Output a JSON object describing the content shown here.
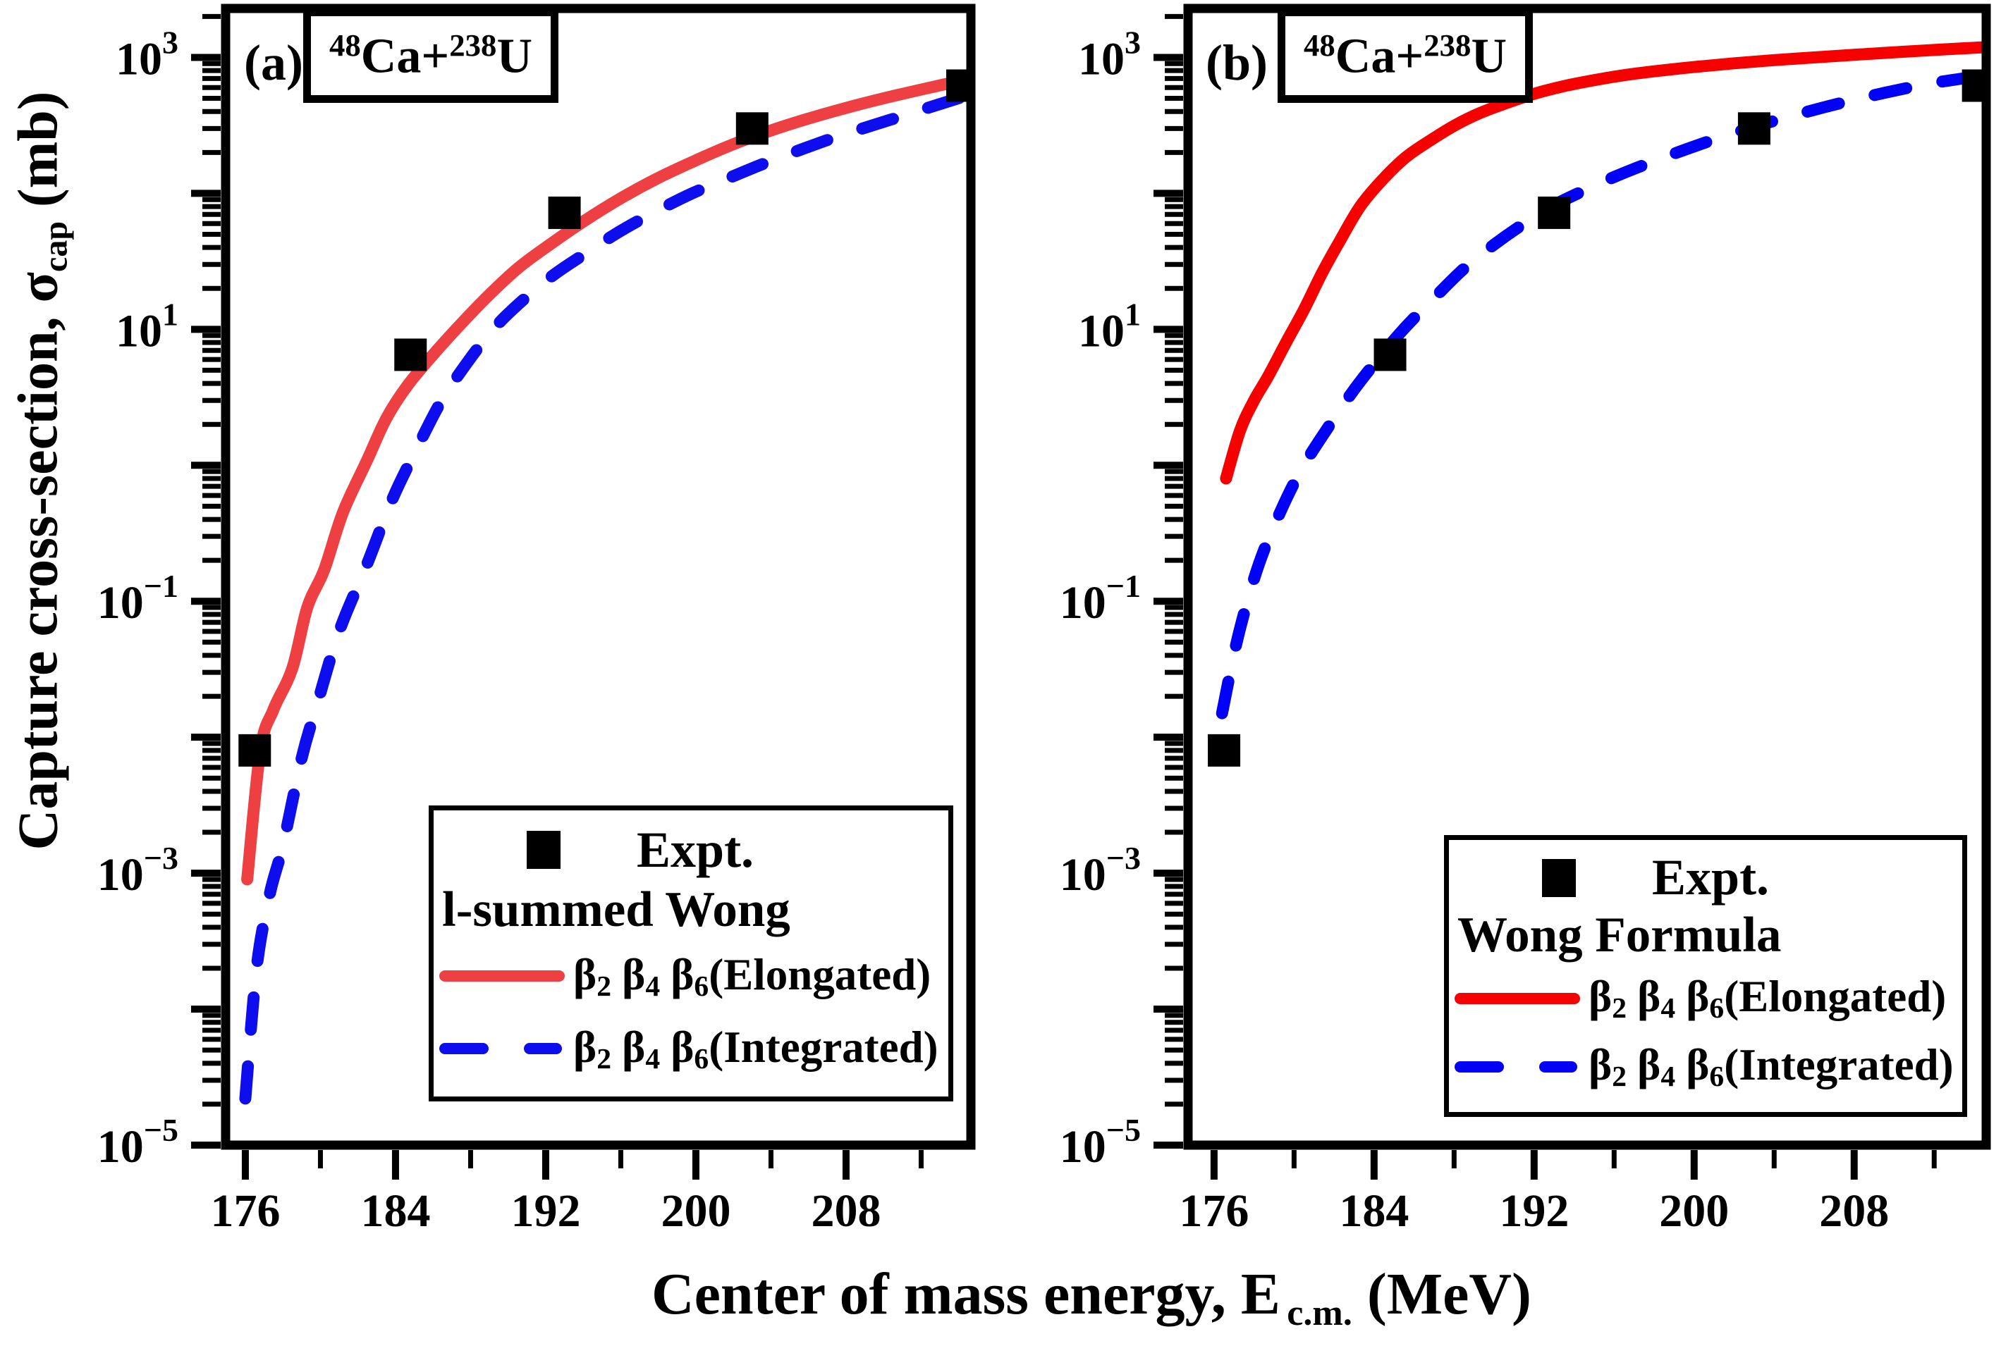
{
  "axis_labels": {
    "x": {
      "main": "Center of mass energy, E",
      "sub": "c.m.",
      "unit": " (MeV)"
    },
    "y": {
      "main": "Capture cross-section, ",
      "sigma": "σ",
      "sub": "cap",
      "unit": " (mb)"
    }
  },
  "panels": [
    {
      "tag": "(a)",
      "title": {
        "sup1": "48",
        "el1": "Ca",
        "plus": "+",
        "sup2": "238",
        "el2": "U"
      },
      "legend": {
        "expt_label": "Expt.",
        "model_label": "l-summed Wong",
        "entries": [
          {
            "beta": "β",
            "sub1": "2",
            "sub2": "4",
            "sub3": "6",
            "suffix": "(Elongated)",
            "color": "#ee4043",
            "dashed": false
          },
          {
            "beta": "β",
            "sub1": "2",
            "sub2": "4",
            "sub3": "6",
            "suffix": "(Integrated)",
            "color": "#0d0dee",
            "dashed": true
          }
        ]
      }
    },
    {
      "tag": "(b)",
      "title": {
        "sup1": "48",
        "el1": "Ca",
        "plus": "+",
        "sup2": "238",
        "el2": "U"
      },
      "legend": {
        "expt_label": "Expt.",
        "model_label": "Wong Formula",
        "entries": [
          {
            "beta": "β",
            "sub1": "2",
            "sub2": "4",
            "sub3": "6",
            "suffix": "(Elongated)",
            "color": "#f60000",
            "dashed": false
          },
          {
            "beta": "β",
            "sub1": "2",
            "sub2": "4",
            "sub3": "6",
            "suffix": "(Integrated)",
            "color": "#0202f6",
            "dashed": true
          }
        ]
      }
    }
  ],
  "chart_data": [
    {
      "type": "line",
      "panel": "(a)",
      "title": "48Ca+238U",
      "model": "l-summed Wong",
      "xlabel": "Center of mass energy, E c.m. (MeV)",
      "ylabel": "Capture cross-section, σ_cap (mb)",
      "xlim": [
        174.95,
        214.65
      ],
      "ylim_exp": [
        -5,
        3.36
      ],
      "x_ticks_major": [
        176,
        184,
        192,
        200,
        208
      ],
      "x_ticks_minor": [
        180,
        188,
        196,
        204,
        212
      ],
      "y_ticks": {
        "base": "10",
        "labeled_exps": [
          3,
          1,
          -1,
          -3,
          -5
        ]
      },
      "grid": false,
      "series": [
        {
          "name": "Expt.",
          "kind": "scatter",
          "marker": "square",
          "color": "#000000",
          "points": [
            [
              176.5,
              0.008
            ],
            [
              184.8,
              6.5
            ],
            [
              193.0,
              72
            ],
            [
              203.0,
              300
            ],
            [
              214.2,
              620
            ]
          ]
        },
        {
          "name": "β2 β4 β6 (Elongated)",
          "kind": "line",
          "color": "#ee4043",
          "dashed": false,
          "points": [
            [
              176.1,
              0.0009
            ],
            [
              176.8,
              0.008
            ],
            [
              177.5,
              0.016
            ],
            [
              178.5,
              0.032
            ],
            [
              179.3,
              0.09
            ],
            [
              180.2,
              0.17
            ],
            [
              181.2,
              0.45
            ],
            [
              182.5,
              1.1
            ],
            [
              183.5,
              2.2
            ],
            [
              184.6,
              3.8
            ],
            [
              186.0,
              6.5
            ],
            [
              187.5,
              11
            ],
            [
              189.0,
              18
            ],
            [
              190.5,
              28
            ],
            [
              192.0,
              40
            ],
            [
              194.0,
              62
            ],
            [
              196.0,
              92
            ],
            [
              198.0,
              130
            ],
            [
              200.0,
              175
            ],
            [
              202.0,
              230
            ],
            [
              204.0,
              290
            ],
            [
              206.0,
              355
            ],
            [
              208.0,
              425
            ],
            [
              210.0,
              500
            ],
            [
              212.0,
              580
            ],
            [
              214.65,
              700
            ]
          ]
        },
        {
          "name": "β2 β4 β6 (Integrated)",
          "kind": "line",
          "color": "#0d0dee",
          "dashed": true,
          "points": [
            [
              176.0,
              2.2e-05
            ],
            [
              176.6,
              0.0002
            ],
            [
              177.3,
              0.0007
            ],
            [
              178.0,
              0.0016
            ],
            [
              179.0,
              0.007
            ],
            [
              179.8,
              0.017
            ],
            [
              181.0,
              0.06
            ],
            [
              182.5,
              0.19
            ],
            [
              183.8,
              0.55
            ],
            [
              185.1,
              1.3
            ],
            [
              186.4,
              2.9
            ],
            [
              187.7,
              5.4
            ],
            [
              189.2,
              10
            ],
            [
              190.7,
              16
            ],
            [
              192.4,
              25
            ],
            [
              194.1,
              36
            ],
            [
              196.0,
              53
            ],
            [
              197.9,
              74
            ],
            [
              199.8,
              100
            ],
            [
              201.6,
              127
            ],
            [
              203.5,
              163
            ],
            [
              205.4,
              205
            ],
            [
              207.3,
              255
            ],
            [
              209.2,
              310
            ],
            [
              210.7,
              360
            ],
            [
              212.2,
              419
            ],
            [
              214.65,
              535
            ]
          ]
        }
      ]
    },
    {
      "type": "line",
      "panel": "(b)",
      "title": "48Ca+238U",
      "model": "Wong Formula",
      "xlabel": "Center of mass energy, E c.m. (MeV)",
      "ylabel": "Capture cross-section, σ_cap (mb)",
      "xlim": [
        174.7,
        214.6
      ],
      "ylim_exp": [
        -5,
        3.36
      ],
      "x_ticks_major": [
        176,
        184,
        192,
        200,
        208
      ],
      "x_ticks_minor": [
        180,
        188,
        196,
        204,
        212
      ],
      "y_ticks": {
        "base": "10",
        "labeled_exps": [
          3,
          1,
          -1,
          -3,
          -5
        ]
      },
      "grid": false,
      "series": [
        {
          "name": "Expt.",
          "kind": "scatter",
          "marker": "square",
          "color": "#000000",
          "points": [
            [
              176.5,
              0.008
            ],
            [
              184.8,
              6.5
            ],
            [
              193.0,
              72
            ],
            [
              203.0,
              300
            ],
            [
              214.2,
              620
            ]
          ]
        },
        {
          "name": "β2 β4 β6 (Elongated)",
          "kind": "line",
          "color": "#f60000",
          "dashed": false,
          "points": [
            [
              176.6,
              0.8
            ],
            [
              177.3,
              1.8
            ],
            [
              178.0,
              3.0
            ],
            [
              178.7,
              4.5
            ],
            [
              179.6,
              8.0
            ],
            [
              180.5,
              14
            ],
            [
              181.4,
              26
            ],
            [
              182.3,
              45
            ],
            [
              183.3,
              80
            ],
            [
              184.4,
              125
            ],
            [
              185.6,
              185
            ],
            [
              186.9,
              250
            ],
            [
              188.1,
              320
            ],
            [
              189.3,
              390
            ],
            [
              190.5,
              455
            ],
            [
              192.0,
              540
            ],
            [
              193.5,
              615
            ],
            [
              195.0,
              680
            ],
            [
              196.5,
              740
            ],
            [
              198.0,
              790
            ],
            [
              200.0,
              850
            ],
            [
              202.0,
              905
            ],
            [
              204.0,
              955
            ],
            [
              206.0,
              1000
            ],
            [
              208.0,
              1045
            ],
            [
              210.0,
              1090
            ],
            [
              212.0,
              1135
            ],
            [
              214.6,
              1190
            ]
          ]
        },
        {
          "name": "β2 β4 β6 (Integrated)",
          "kind": "line",
          "color": "#0202f6",
          "dashed": true,
          "points": [
            [
              176.4,
              0.015
            ],
            [
              177.2,
              0.055
            ],
            [
              178.2,
              0.18
            ],
            [
              179.3,
              0.45
            ],
            [
              180.4,
              0.95
            ],
            [
              181.7,
              1.9
            ],
            [
              183.0,
              3.6
            ],
            [
              184.3,
              6.3
            ],
            [
              185.6,
              10.5
            ],
            [
              187.0,
              17
            ],
            [
              188.5,
              28
            ],
            [
              190.0,
              42
            ],
            [
              191.5,
              60
            ],
            [
              193.0,
              82
            ],
            [
              194.5,
              105
            ],
            [
              196.0,
              132
            ],
            [
              197.5,
              162
            ],
            [
              199.0,
              196
            ],
            [
              200.5,
              235
            ],
            [
              202.0,
              278
            ],
            [
              203.5,
              325
            ],
            [
              205.0,
              375
            ],
            [
              206.5,
              430
            ],
            [
              208.0,
              488
            ],
            [
              209.5,
              548
            ],
            [
              211.0,
              610
            ],
            [
              212.5,
              668
            ],
            [
              214.6,
              740
            ]
          ]
        }
      ]
    }
  ]
}
